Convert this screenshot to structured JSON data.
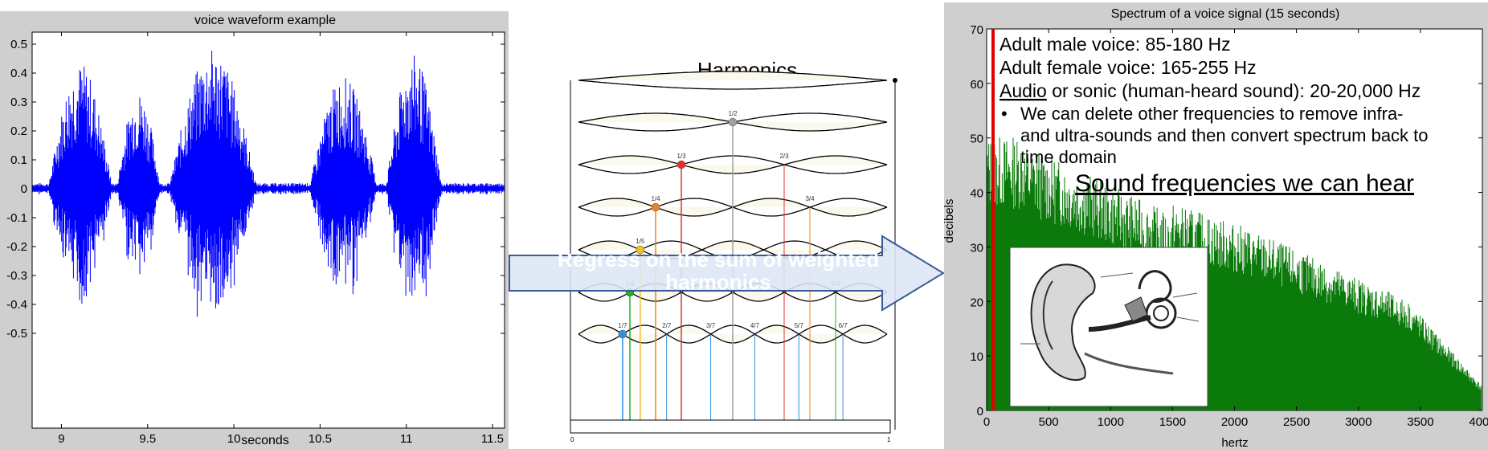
{
  "waveform": {
    "title": "voice waveform example",
    "xlabel": "seconds",
    "x_ticks": [
      "9",
      "9.5",
      "10",
      "10.5",
      "11",
      "11.5"
    ],
    "y_ticks": [
      "0.5",
      "0.4",
      "0.3",
      "0.2",
      "0.1",
      "0",
      "-0.1",
      "-0.2",
      "-0.3",
      "-0.4",
      "-0.5"
    ],
    "color": "#0000ff"
  },
  "harmonics": {
    "title": "Harmonics",
    "fractions": [
      "1/2",
      "1/3",
      "2/3",
      "1/4",
      "3/4",
      "1/5",
      "1/6",
      "5/6",
      "1/7",
      "2/7",
      "3/7",
      "4/7",
      "5/7",
      "6/7"
    ],
    "node_colors": [
      "#a0a0a0",
      "#e53030",
      "#f08020",
      "#f0c020",
      "#20b020",
      "#3090e0"
    ],
    "scale_left": "0",
    "scale_right": "1"
  },
  "arrow": {
    "text": "Regress on the sum of weighted harmonics",
    "fill": "#dde6f5",
    "stroke": "#3a5a9a"
  },
  "spectrum": {
    "title": "Spectrum of a voice signal (15 seconds)",
    "xlabel": "hertz",
    "ylabel": "decibels",
    "x_ticks": [
      "0",
      "500",
      "1000",
      "1500",
      "2000",
      "2500",
      "3000",
      "3500",
      "4000"
    ],
    "y_ticks": [
      "70",
      "60",
      "50",
      "40",
      "30",
      "20",
      "10",
      "0"
    ],
    "bar_color": "#0a7a0a",
    "marker_color": "#e00000",
    "notes": {
      "line1": "Adult male voice: 85-180 Hz",
      "line2": "Adult female voice: 165-255 Hz",
      "line3_underlined": "Audio",
      "line3_rest": " or sonic (human-heard sound): 20-20,000 Hz",
      "bullet_line1": "We can delete other frequencies to remove infra-",
      "bullet_line2": "and ultra-sounds and then convert spectrum back to",
      "bullet_line3": "time domain",
      "heading": "Sound frequencies we can hear"
    },
    "ear_image": "ear-anatomy-illustration"
  }
}
